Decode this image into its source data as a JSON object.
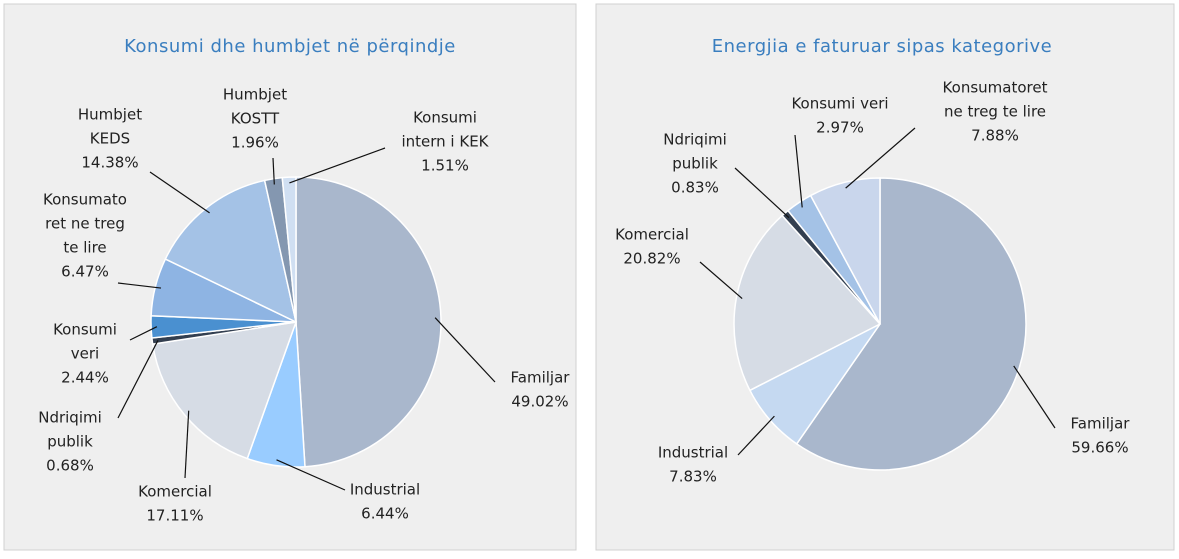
{
  "chart_data": [
    {
      "type": "pie",
      "title": "Konsumi dhe humbjet në përqindje",
      "categories": [
        [
          "Familjar"
        ],
        [
          "Industrial"
        ],
        [
          "Komercial"
        ],
        [
          "Ndriqimi",
          "publik"
        ],
        [
          "Konsumi",
          "veri"
        ],
        [
          "Konsumato",
          "ret ne treg",
          "te lire"
        ],
        [
          "Humbjet",
          "KEDS"
        ],
        [
          "Humbjet",
          "KOSTT"
        ],
        [
          "Konsumi",
          "intern i KEK"
        ]
      ],
      "values": [
        49.02,
        6.44,
        17.11,
        0.68,
        2.44,
        6.47,
        14.38,
        1.96,
        1.51
      ],
      "value_labels": [
        "49.02%",
        "6.44%",
        "17.11%",
        "0.68%",
        "2.44%",
        "6.47%",
        "14.38%",
        "1.96%",
        "1.51%"
      ],
      "colors": [
        "#a9b7cc",
        "#99ccff",
        "#d6dce5",
        "#333f50",
        "#4a90d0",
        "#8eb4e3",
        "#a4c2e6",
        "#8497b0",
        "#d0dff2"
      ]
    },
    {
      "type": "pie",
      "title": "Energjia e faturuar sipas kategorive",
      "categories": [
        [
          "Familjar"
        ],
        [
          "Industrial"
        ],
        [
          "Komercial"
        ],
        [
          "Ndriqimi",
          "publik"
        ],
        [
          "Konsumi veri"
        ],
        [
          "Konsumatoret",
          "ne treg te lire"
        ]
      ],
      "values": [
        59.66,
        7.83,
        20.82,
        0.83,
        2.97,
        7.88
      ],
      "value_labels": [
        "59.66%",
        "7.83%",
        "20.82%",
        "0.83%",
        "2.97%",
        "7.88%"
      ],
      "colors": [
        "#a9b7cc",
        "#c5d9f1",
        "#d6dce5",
        "#333f50",
        "#a4c2e6",
        "#c9d6ec"
      ]
    }
  ]
}
